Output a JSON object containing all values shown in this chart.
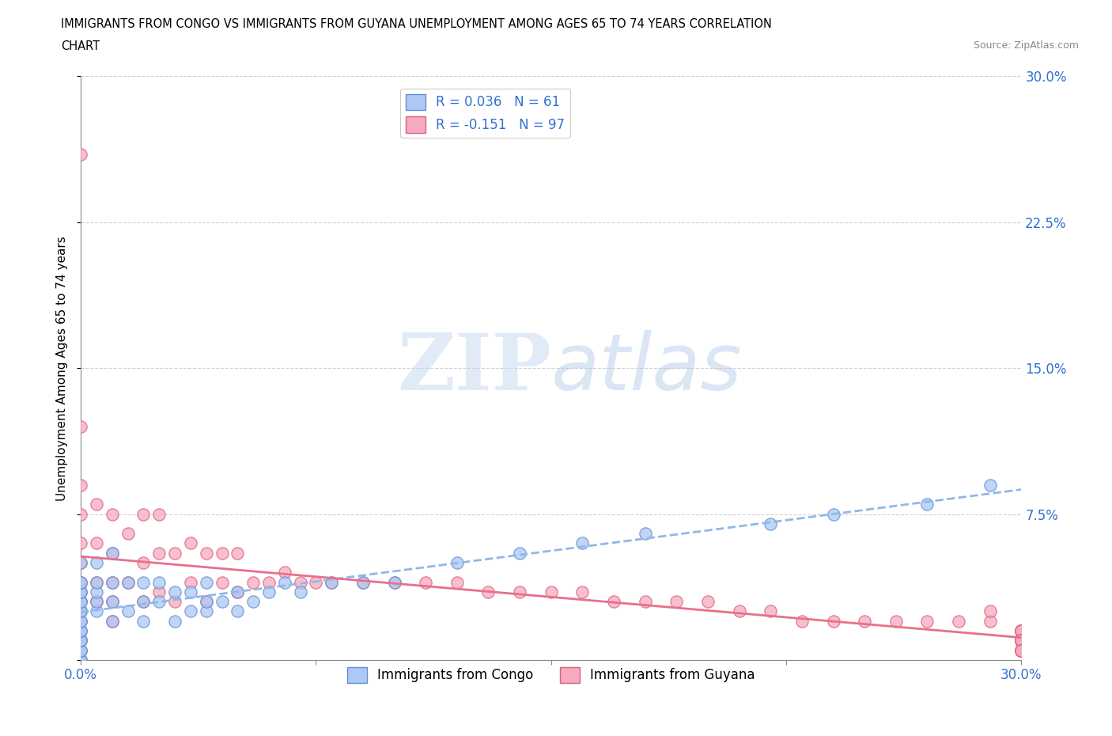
{
  "title_line1": "IMMIGRANTS FROM CONGO VS IMMIGRANTS FROM GUYANA UNEMPLOYMENT AMONG AGES 65 TO 74 YEARS CORRELATION",
  "title_line2": "CHART",
  "source": "Source: ZipAtlas.com",
  "ylabel": "Unemployment Among Ages 65 to 74 years",
  "xlim": [
    0.0,
    0.3
  ],
  "ylim": [
    0.0,
    0.3
  ],
  "xticks": [
    0.0,
    0.075,
    0.15,
    0.225,
    0.3
  ],
  "yticks": [
    0.0,
    0.075,
    0.15,
    0.225,
    0.3
  ],
  "xticklabels": [
    "0.0%",
    "",
    "",
    "",
    "30.0%"
  ],
  "yticklabels_right": [
    "",
    "7.5%",
    "15.0%",
    "22.5%",
    "30.0%"
  ],
  "congo_color": "#adc8f5",
  "guyana_color": "#f5aabf",
  "congo_edge_color": "#6090d0",
  "guyana_edge_color": "#e0607a",
  "congo_line_color": "#90b8e8",
  "guyana_line_color": "#e8708a",
  "R_congo": 0.036,
  "N_congo": 61,
  "R_guyana": -0.151,
  "N_guyana": 97,
  "legend_label_congo": "Immigrants from Congo",
  "legend_label_guyana": "Immigrants from Guyana",
  "watermark_zip": "ZIP",
  "watermark_atlas": "atlas",
  "tick_color": "#3070d0",
  "grid_color": "#cccccc",
  "background_color": "#ffffff",
  "congo_x": [
    0.0,
    0.0,
    0.0,
    0.0,
    0.0,
    0.0,
    0.0,
    0.0,
    0.0,
    0.0,
    0.0,
    0.0,
    0.0,
    0.0,
    0.0,
    0.0,
    0.0,
    0.0,
    0.0,
    0.0,
    0.005,
    0.005,
    0.005,
    0.005,
    0.005,
    0.01,
    0.01,
    0.01,
    0.01,
    0.015,
    0.015,
    0.02,
    0.02,
    0.02,
    0.025,
    0.025,
    0.03,
    0.03,
    0.035,
    0.035,
    0.04,
    0.04,
    0.04,
    0.045,
    0.05,
    0.05,
    0.055,
    0.06,
    0.065,
    0.07,
    0.08,
    0.09,
    0.1,
    0.12,
    0.14,
    0.16,
    0.18,
    0.22,
    0.24,
    0.27,
    0.29
  ],
  "congo_y": [
    0.0,
    0.0,
    0.005,
    0.005,
    0.01,
    0.01,
    0.01,
    0.015,
    0.015,
    0.02,
    0.02,
    0.025,
    0.025,
    0.03,
    0.03,
    0.035,
    0.035,
    0.04,
    0.04,
    0.05,
    0.025,
    0.03,
    0.035,
    0.04,
    0.05,
    0.02,
    0.03,
    0.04,
    0.055,
    0.025,
    0.04,
    0.02,
    0.03,
    0.04,
    0.03,
    0.04,
    0.02,
    0.035,
    0.025,
    0.035,
    0.025,
    0.03,
    0.04,
    0.03,
    0.025,
    0.035,
    0.03,
    0.035,
    0.04,
    0.035,
    0.04,
    0.04,
    0.04,
    0.05,
    0.055,
    0.06,
    0.065,
    0.07,
    0.075,
    0.08,
    0.09
  ],
  "guyana_x": [
    0.0,
    0.0,
    0.0,
    0.0,
    0.0,
    0.0,
    0.0,
    0.0,
    0.0,
    0.0,
    0.0,
    0.0,
    0.0,
    0.0,
    0.0,
    0.005,
    0.005,
    0.005,
    0.005,
    0.01,
    0.01,
    0.01,
    0.01,
    0.01,
    0.015,
    0.015,
    0.02,
    0.02,
    0.02,
    0.025,
    0.025,
    0.025,
    0.03,
    0.03,
    0.035,
    0.035,
    0.04,
    0.04,
    0.045,
    0.045,
    0.05,
    0.05,
    0.055,
    0.06,
    0.065,
    0.07,
    0.075,
    0.08,
    0.09,
    0.1,
    0.11,
    0.12,
    0.13,
    0.14,
    0.15,
    0.16,
    0.17,
    0.18,
    0.19,
    0.2,
    0.21,
    0.22,
    0.23,
    0.24,
    0.25,
    0.26,
    0.27,
    0.28,
    0.29,
    0.29,
    0.3,
    0.3,
    0.3,
    0.3,
    0.3,
    0.3,
    0.3,
    0.3,
    0.3,
    0.3,
    0.3,
    0.3,
    0.3,
    0.3,
    0.3,
    0.3,
    0.3,
    0.3,
    0.3,
    0.3,
    0.3,
    0.3,
    0.3,
    0.3,
    0.3,
    0.3,
    0.3
  ],
  "guyana_y": [
    0.0,
    0.005,
    0.01,
    0.015,
    0.02,
    0.025,
    0.03,
    0.035,
    0.04,
    0.05,
    0.06,
    0.075,
    0.09,
    0.12,
    0.26,
    0.03,
    0.04,
    0.06,
    0.08,
    0.02,
    0.03,
    0.04,
    0.055,
    0.075,
    0.04,
    0.065,
    0.03,
    0.05,
    0.075,
    0.035,
    0.055,
    0.075,
    0.03,
    0.055,
    0.04,
    0.06,
    0.03,
    0.055,
    0.04,
    0.055,
    0.035,
    0.055,
    0.04,
    0.04,
    0.045,
    0.04,
    0.04,
    0.04,
    0.04,
    0.04,
    0.04,
    0.04,
    0.035,
    0.035,
    0.035,
    0.035,
    0.03,
    0.03,
    0.03,
    0.03,
    0.025,
    0.025,
    0.02,
    0.02,
    0.02,
    0.02,
    0.02,
    0.02,
    0.02,
    0.025,
    0.015,
    0.015,
    0.015,
    0.015,
    0.015,
    0.015,
    0.01,
    0.01,
    0.01,
    0.01,
    0.01,
    0.01,
    0.01,
    0.01,
    0.01,
    0.01,
    0.01,
    0.01,
    0.01,
    0.01,
    0.01,
    0.005,
    0.005,
    0.005,
    0.005,
    0.005,
    0.005
  ]
}
